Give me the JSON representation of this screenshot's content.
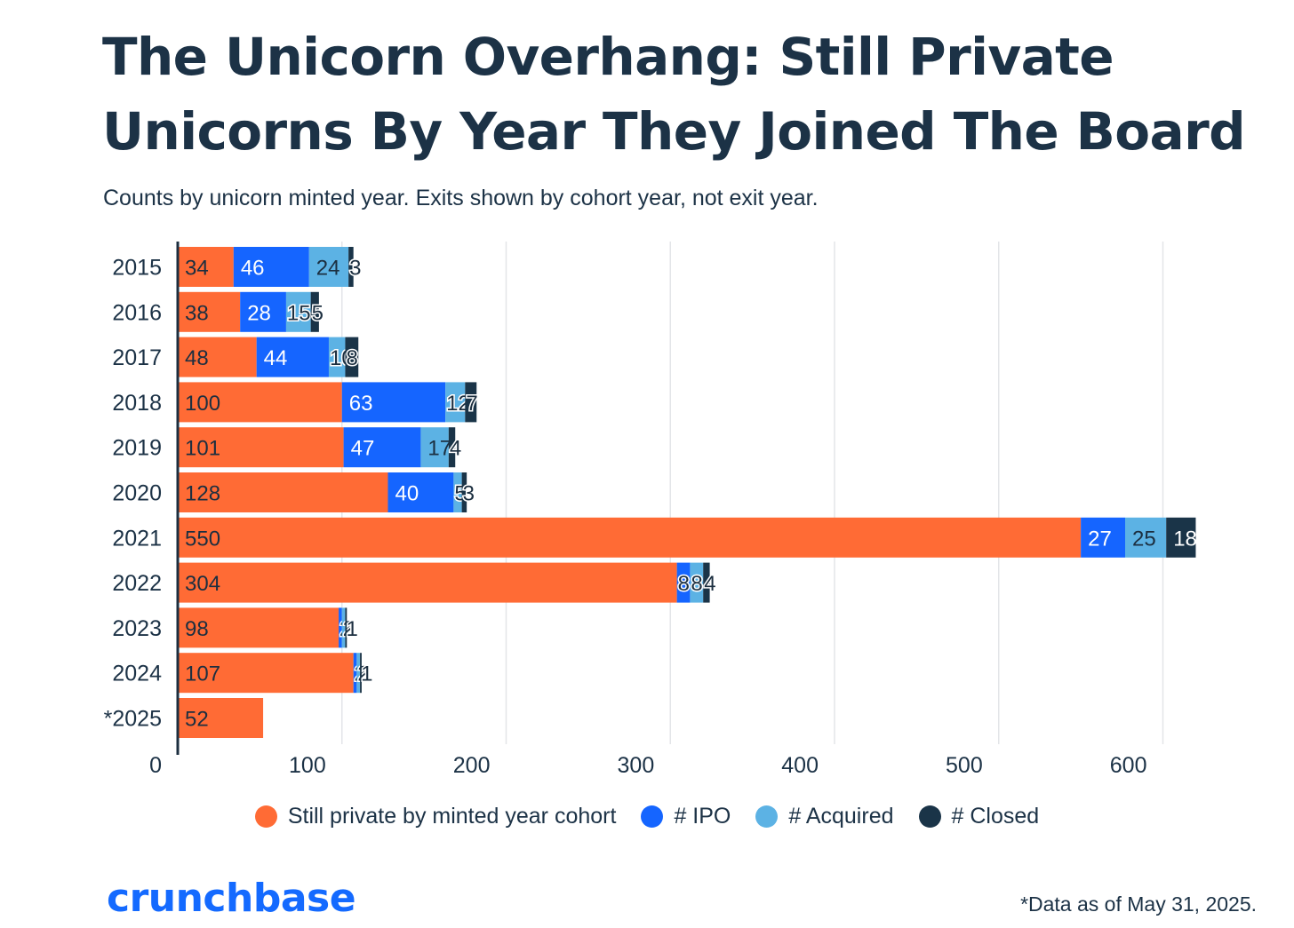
{
  "header": {
    "title": "The Unicorn Overhang: Still Private Unicorns By Year They Joined The Board",
    "subtitle": "Counts by unicorn minted year. Exits shown by cohort year, not exit year."
  },
  "chart_data": {
    "type": "bar",
    "orientation": "horizontal",
    "stacked": true,
    "title": "The Unicorn Overhang: Still Private Unicorns By Year They Joined The Board",
    "subtitle": "Counts by unicorn minted year. Exits shown by cohort year, not exit year.",
    "xlabel": "",
    "ylabel": "",
    "categories": [
      "2015",
      "2016",
      "2017",
      "2018",
      "2019",
      "2020",
      "2021",
      "2022",
      "2023",
      "2024",
      "*2025"
    ],
    "xlim": [
      0,
      620
    ],
    "xticks": [
      0,
      100,
      200,
      300,
      400,
      500,
      600
    ],
    "grid": true,
    "legend_position": "bottom",
    "series": [
      {
        "name": "Still private by minted year cohort",
        "color": "#ff6b35",
        "label_color": "#1c2f40",
        "values": [
          34,
          38,
          48,
          100,
          101,
          128,
          550,
          304,
          98,
          107,
          52
        ]
      },
      {
        "name": "# IPO",
        "color": "#1565ff",
        "label_color": "#ffffff",
        "values": [
          46,
          28,
          44,
          63,
          47,
          40,
          27,
          8,
          2,
          2,
          0
        ]
      },
      {
        "name": "# Acquired",
        "color": "#5cb2e4",
        "label_color": "#1c2f40",
        "values": [
          24,
          15,
          10,
          12,
          17,
          5,
          25,
          8,
          2,
          2,
          0
        ]
      },
      {
        "name": "# Closed",
        "color": "#1a3448",
        "label_color": "#ffffff",
        "values": [
          3,
          5,
          8,
          7,
          4,
          3,
          18,
          4,
          1,
          1,
          0
        ]
      }
    ]
  },
  "legend": {
    "items": [
      {
        "label": "Still private by minted year cohort",
        "color": "#ff6b35"
      },
      {
        "label": "# IPO",
        "color": "#1565ff"
      },
      {
        "label": "# Acquired",
        "color": "#5cb2e4"
      },
      {
        "label": "# Closed",
        "color": "#1a3448"
      }
    ]
  },
  "footer": {
    "logo_text": "crunchbase",
    "logo_color": "#146aff",
    "footnote": "*Data as of May 31, 2025."
  }
}
